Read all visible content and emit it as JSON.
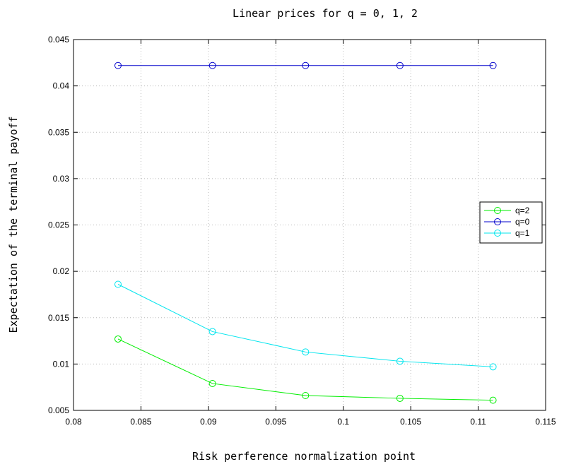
{
  "chart_data": {
    "type": "line",
    "title": "Linear prices for q = 0, 1, 2",
    "xlabel": "Risk perference normalization point",
    "ylabel": "Expectation of the terminal payoff",
    "xlim": [
      0.08,
      0.115
    ],
    "ylim": [
      0.005,
      0.045
    ],
    "xticks": [
      0.08,
      0.085,
      0.09,
      0.095,
      0.1,
      0.105,
      0.11,
      0.115
    ],
    "xtick_labels": [
      "0.08",
      "0.085",
      "0.09",
      "0.095",
      "0.1",
      "0.105",
      "0.11",
      "0.115"
    ],
    "yticks": [
      0.005,
      0.01,
      0.015,
      0.02,
      0.025,
      0.03,
      0.035,
      0.04,
      0.045
    ],
    "ytick_labels": [
      "0.005",
      "0.01",
      "0.015",
      "0.02",
      "0.025",
      "0.03",
      "0.035",
      "0.04",
      "0.045"
    ],
    "grid": true,
    "legend_position": "right",
    "series": [
      {
        "name": "q=2",
        "color": "#00ee00",
        "marker": "circle",
        "x": [
          0.0833,
          0.0903,
          0.0972,
          0.1042,
          0.1111
        ],
        "y": [
          0.0127,
          0.0079,
          0.0066,
          0.0063,
          0.0061
        ]
      },
      {
        "name": "q=0",
        "color": "#0000cc",
        "marker": "circle",
        "x": [
          0.0833,
          0.0903,
          0.0972,
          0.1042,
          0.1111
        ],
        "y": [
          0.0422,
          0.0422,
          0.0422,
          0.0422,
          0.0422
        ]
      },
      {
        "name": "q=1",
        "color": "#00e5ee",
        "marker": "circle",
        "x": [
          0.0833,
          0.0903,
          0.0972,
          0.1042,
          0.1111
        ],
        "y": [
          0.0186,
          0.0135,
          0.0113,
          0.0103,
          0.0097
        ]
      }
    ]
  }
}
